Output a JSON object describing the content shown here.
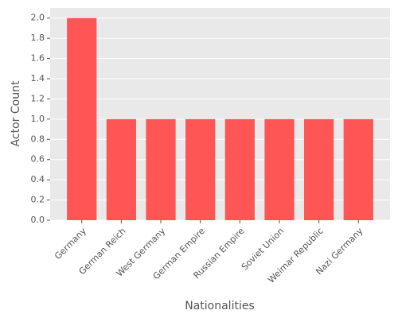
{
  "chart_data": {
    "type": "bar",
    "categories": [
      "Germany",
      "German Reich",
      "West Germany",
      "German Empire",
      "Russian Empire",
      "Soviet Union",
      "Weimar Republic",
      "Nazi Germany"
    ],
    "values": [
      2,
      1,
      1,
      1,
      1,
      1,
      1,
      1
    ],
    "color": "#ff5555",
    "xlabel": "Nationalities",
    "ylabel": "Actor Count",
    "ylim": [
      0,
      2.1
    ],
    "yticks": [
      {
        "value": 0,
        "label": "0.0"
      },
      0.2,
      0.4,
      0.6,
      0.8,
      {
        "value": 1,
        "label": "1.0"
      },
      1.2,
      1.4,
      1.6,
      1.8,
      {
        "value": 2,
        "label": "2.0"
      }
    ],
    "grid": true
  }
}
